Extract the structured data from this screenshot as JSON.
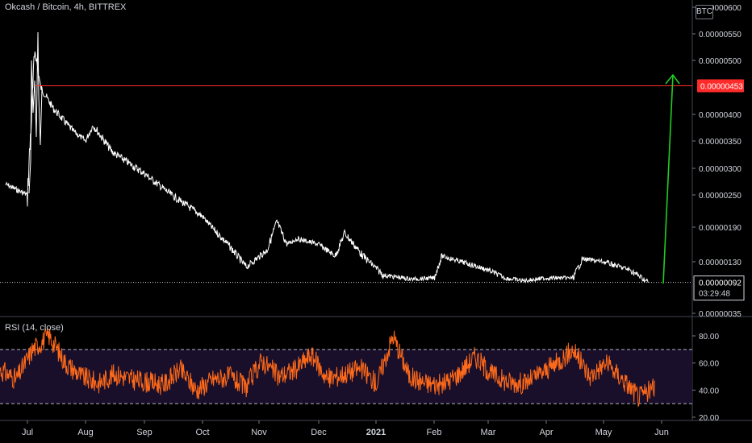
{
  "header": {
    "title": "Okcash / Bitcoin, 4h, BITTREX"
  },
  "price_axis": {
    "currency_badge": "BTC",
    "ticks": [
      "0.00000600",
      "0.00000550",
      "0.00000500",
      "0.00000400",
      "0.00000350",
      "0.00000300",
      "0.00000250",
      "0.00000190",
      "0.00000130",
      "0.00000035"
    ],
    "ticks_y_values": [
      6e-06,
      5.5e-06,
      5e-06,
      4e-06,
      3.5e-06,
      3e-06,
      2.5e-06,
      1.9e-06,
      1.3e-06,
      3.5e-07
    ],
    "target_label": "0.00000453",
    "last_price_label": "0.00000092",
    "countdown_label": "03:29:48"
  },
  "rsi": {
    "label": "RSI (14, close)",
    "ticks": [
      "80.00",
      "60.00",
      "40.00",
      "20.00"
    ],
    "upper_band": 70,
    "lower_band": 30
  },
  "time_axis": {
    "labels": [
      "Jul",
      "Aug",
      "Sep",
      "Oct",
      "Nov",
      "Dec",
      "2021",
      "Feb",
      "Mar",
      "Apr",
      "May",
      "Jun"
    ]
  },
  "colors": {
    "background": "#000000",
    "price_line": "#ffffff",
    "target_line": "#ff2a2a",
    "projection_arrow": "#22cc22",
    "rsi_line": "#ff6a1a",
    "rsi_band_fill": "#1a0f2a",
    "text": "#d1d4dc"
  },
  "chart_data": [
    {
      "type": "line",
      "title": "Okcash / Bitcoin, 4h, BITTREX",
      "x": [
        "2020-06-20",
        "2020-07-01",
        "2020-07-05",
        "2020-07-08",
        "2020-07-15",
        "2020-07-25",
        "2020-08-01",
        "2020-08-05",
        "2020-08-15",
        "2020-09-01",
        "2020-09-15",
        "2020-10-01",
        "2020-10-06",
        "2020-10-15",
        "2020-10-25",
        "2020-11-05",
        "2020-11-10",
        "2020-11-15",
        "2020-11-20",
        "2020-12-01",
        "2020-12-10",
        "2020-12-15",
        "2020-12-25",
        "2021-01-05",
        "2021-01-20",
        "2021-02-01",
        "2021-02-05",
        "2021-02-15",
        "2021-03-01",
        "2021-03-10",
        "2021-03-20",
        "2021-04-01",
        "2021-04-15",
        "2021-04-20",
        "2021-05-01",
        "2021-05-15",
        "2021-05-25"
      ],
      "values": [
        2.7e-06,
        2.5e-06,
        5.2e-06,
        4.5e-06,
        4.1e-06,
        3.7e-06,
        3.5e-06,
        3.8e-06,
        3.3e-06,
        2.9e-06,
        2.5e-06,
        2.1e-06,
        1.9e-06,
        1.6e-06,
        1.2e-06,
        1.5e-06,
        2e-06,
        1.6e-06,
        1.7e-06,
        1.6e-06,
        1.4e-06,
        1.8e-06,
        1.4e-06,
        1.05e-06,
        9.8e-07,
        1e-06,
        1.4e-06,
        1.3e-06,
        1.15e-06,
        1e-06,
        9.5e-07,
        1e-06,
        1e-06,
        1.35e-06,
        1.3e-06,
        1.15e-06,
        9.2e-07
      ],
      "ylim": [
        3.5e-07,
        6e-06
      ],
      "annotations": [
        "0.00000453",
        "0.00000092"
      ]
    },
    {
      "type": "line",
      "title": "RSI (14, close)",
      "ylim": [
        20,
        85
      ],
      "values": [
        55,
        48,
        70,
        80,
        60,
        50,
        45,
        52,
        48,
        46,
        44,
        55,
        40,
        48,
        50,
        42,
        62,
        50,
        55,
        66,
        48,
        52,
        56,
        45,
        80,
        50,
        45,
        44,
        52,
        65,
        52,
        46,
        45,
        52,
        60,
        70,
        50,
        60,
        48,
        35,
        42
      ]
    }
  ]
}
